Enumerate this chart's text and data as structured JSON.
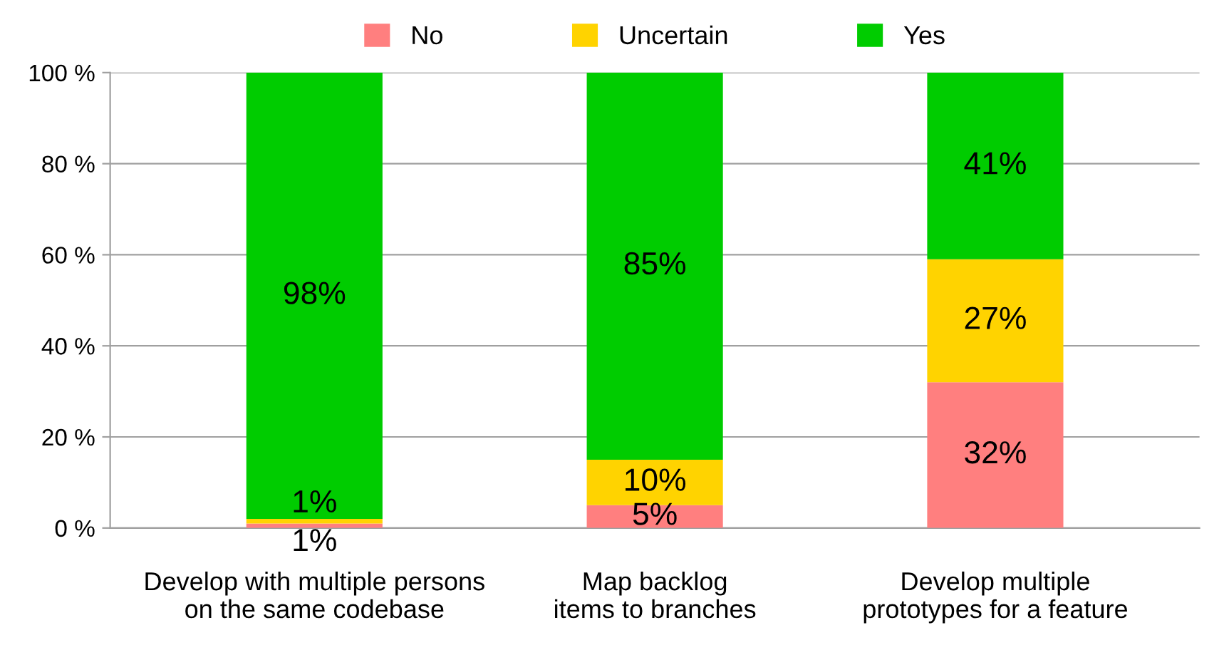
{
  "chart_data": {
    "type": "bar",
    "stacked": true,
    "categories": [
      "Develop with multiple persons\non the same codebase",
      "Map backlog\nitems to branches",
      "Develop multiple\nprototypes for a feature"
    ],
    "series": [
      {
        "name": "No",
        "color": "#ff7f7f",
        "values": [
          1,
          5,
          32
        ],
        "value_labels": [
          "1%",
          "5%",
          "32%"
        ]
      },
      {
        "name": "Uncertain",
        "color": "#ffd300",
        "values": [
          1,
          10,
          27
        ],
        "value_labels": [
          "1%",
          "10%",
          "27%"
        ]
      },
      {
        "name": "Yes",
        "color": "#00cc00",
        "values": [
          98,
          85,
          41
        ],
        "value_labels": [
          "98%",
          "85%",
          "41%"
        ]
      }
    ],
    "ylim": [
      0,
      100
    ],
    "yticks": [
      {
        "value": 0,
        "label": "0 %"
      },
      {
        "value": 20,
        "label": "20 %"
      },
      {
        "value": 40,
        "label": "40 %"
      },
      {
        "value": 60,
        "label": "60 %"
      },
      {
        "value": 80,
        "label": "80 %"
      },
      {
        "value": 100,
        "label": "100 %"
      }
    ],
    "grid": "y",
    "legend": "top"
  }
}
